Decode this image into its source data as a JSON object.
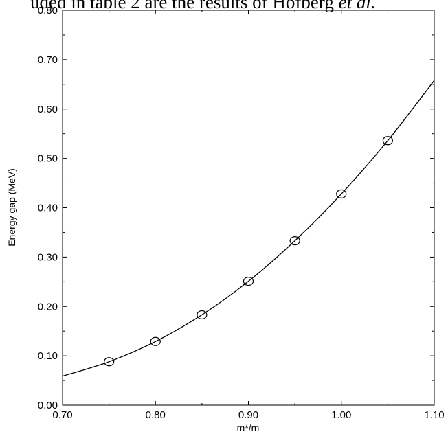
{
  "header": {
    "text_main": "uded in table 2 are the results of Hofberg ",
    "text_italic": "et al."
  },
  "chart_data": {
    "type": "scatter",
    "title": "",
    "xlabel": "m*/m",
    "ylabel": "Energy gap (MeV)",
    "xlim": [
      0.7,
      1.1
    ],
    "ylim": [
      0.0,
      0.8
    ],
    "x_ticks": [
      {
        "value": 0.7,
        "label": "0.70"
      },
      {
        "value": 0.8,
        "label": "0.80"
      },
      {
        "value": 0.9,
        "label": "0.90"
      },
      {
        "value": 1.0,
        "label": "1.00"
      },
      {
        "value": 1.1,
        "label": "1.10"
      }
    ],
    "y_ticks": [
      {
        "value": 0.0,
        "label": "0.00"
      },
      {
        "value": 0.1,
        "label": "0.10"
      },
      {
        "value": 0.2,
        "label": "0.20"
      },
      {
        "value": 0.3,
        "label": "0.30"
      },
      {
        "value": 0.4,
        "label": "0.40"
      },
      {
        "value": 0.5,
        "label": "0.50"
      },
      {
        "value": 0.6,
        "label": "0.60"
      },
      {
        "value": 0.7,
        "label": "0.70"
      },
      {
        "value": 0.8,
        "label": "0.80"
      }
    ],
    "grid": false,
    "legend": "none",
    "series": [
      {
        "kind": "points",
        "marker": "open-circle",
        "x": [
          0.75,
          0.8,
          0.85,
          0.9,
          0.95,
          1.0,
          1.05
        ],
        "y": [
          0.088,
          0.129,
          0.183,
          0.251,
          0.333,
          0.428,
          0.536
        ]
      },
      {
        "kind": "curve",
        "x": [
          0.7,
          0.75,
          0.8,
          0.85,
          0.9,
          0.95,
          1.0,
          1.05,
          1.1
        ],
        "y": [
          0.059,
          0.088,
          0.129,
          0.183,
          0.251,
          0.333,
          0.428,
          0.536,
          0.658
        ]
      }
    ],
    "colors": {
      "line": "#000000",
      "marker": "#000000",
      "axes": "#000000"
    }
  }
}
